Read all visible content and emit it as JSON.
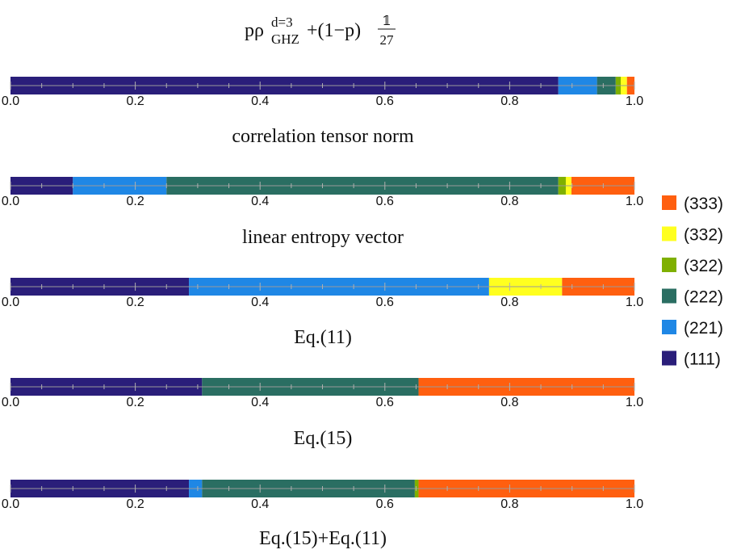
{
  "title": {
    "prefix": "pρ",
    "superscript": "d=3",
    "subscript": "GHZ",
    "middle": "+(1−p)",
    "numerator": "𝟙",
    "denominator": "27"
  },
  "chart_data": {
    "type": "stacked-interval-bar",
    "x_range": [
      0.0,
      1.0
    ],
    "tick_labels": [
      "0.0",
      "0.2",
      "0.4",
      "0.6",
      "0.8",
      "1.0"
    ],
    "legend": [
      {
        "label": "(333)",
        "color": "#ff5f0f"
      },
      {
        "label": "(332)",
        "color": "#ffff1f"
      },
      {
        "label": "(322)",
        "color": "#7fb000"
      },
      {
        "label": "(222)",
        "color": "#2a6e62"
      },
      {
        "label": "(221)",
        "color": "#1f87e5"
      },
      {
        "label": "(111)",
        "color": "#2a1e7a"
      }
    ],
    "bars": [
      {
        "caption": "",
        "segments": [
          {
            "class": "(111)",
            "from": 0.0,
            "to": 0.878
          },
          {
            "class": "(221)",
            "from": 0.878,
            "to": 0.94
          },
          {
            "class": "(222)",
            "from": 0.94,
            "to": 0.97
          },
          {
            "class": "(322)",
            "from": 0.97,
            "to": 0.978
          },
          {
            "class": "(332)",
            "from": 0.978,
            "to": 0.988
          },
          {
            "class": "(333)",
            "from": 0.988,
            "to": 1.0
          }
        ]
      },
      {
        "caption": "correlation tensor norm",
        "segments": [
          {
            "class": "(111)",
            "from": 0.0,
            "to": 0.1
          },
          {
            "class": "(221)",
            "from": 0.1,
            "to": 0.25
          },
          {
            "class": "(222)",
            "from": 0.25,
            "to": 0.878
          },
          {
            "class": "(322)",
            "from": 0.878,
            "to": 0.89
          },
          {
            "class": "(332)",
            "from": 0.89,
            "to": 0.899
          },
          {
            "class": "(333)",
            "from": 0.899,
            "to": 1.0
          }
        ]
      },
      {
        "caption": "linear entropy vector",
        "segments": [
          {
            "class": "(111)",
            "from": 0.0,
            "to": 0.286
          },
          {
            "class": "(221)",
            "from": 0.286,
            "to": 0.767
          },
          {
            "class": "(332)",
            "from": 0.767,
            "to": 0.884
          },
          {
            "class": "(333)",
            "from": 0.884,
            "to": 1.0
          }
        ]
      },
      {
        "caption": "Eq.(11)",
        "segments": [
          {
            "class": "(111)",
            "from": 0.0,
            "to": 0.307
          },
          {
            "class": "(222)",
            "from": 0.307,
            "to": 0.654
          },
          {
            "class": "(333)",
            "from": 0.654,
            "to": 1.0
          }
        ]
      },
      {
        "caption": "Eq.(15)",
        "segments": [
          {
            "class": "(111)",
            "from": 0.0,
            "to": 0.286
          },
          {
            "class": "(221)",
            "from": 0.286,
            "to": 0.307
          },
          {
            "class": "(222)",
            "from": 0.307,
            "to": 0.648
          },
          {
            "class": "(322)",
            "from": 0.648,
            "to": 0.654
          },
          {
            "class": "(333)",
            "from": 0.654,
            "to": 1.0
          }
        ]
      }
    ],
    "bottom_caption": "Eq.(15)+Eq.(11)"
  }
}
